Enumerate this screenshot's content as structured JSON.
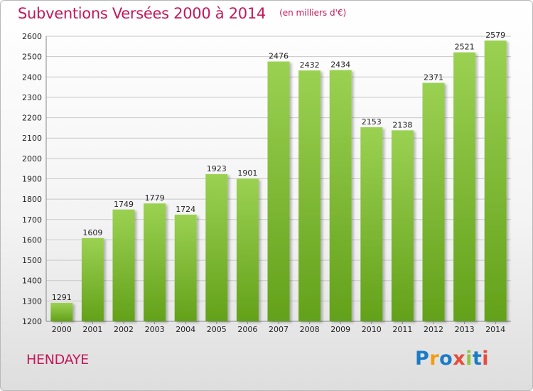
{
  "header": {
    "title": "Subventions Versées 2000 à 2014",
    "subtitle": "(en milliers d'€)"
  },
  "footer": {
    "city": "HENDAYE",
    "logo_text": "Proxiti",
    "logo_colors": [
      "#1a7bc6",
      "#f39c12",
      "#1a7bc6",
      "#e74c3c",
      "#8dc63f",
      "#1a7bc6",
      "#e74c3c"
    ]
  },
  "colors": {
    "bar_light": "#9bd152",
    "bar_dark": "#63a11a",
    "grid": "#c8c8c8",
    "title": "#c2185b"
  },
  "chart_data": {
    "type": "bar",
    "title": "Subventions Versées 2000 à 2014",
    "subtitle": "(en milliers d'€)",
    "categories": [
      "2000",
      "2001",
      "2002",
      "2003",
      "2004",
      "2005",
      "2006",
      "2007",
      "2008",
      "2009",
      "2010",
      "2011",
      "2012",
      "2013",
      "2014"
    ],
    "values": [
      1291,
      1609,
      1749,
      1779,
      1724,
      1923,
      1901,
      2476,
      2432,
      2434,
      2153,
      2138,
      2371,
      2521,
      2579
    ],
    "xlabel": "",
    "ylabel": "",
    "ylim": [
      1200,
      2600
    ],
    "yticks": [
      1200,
      1300,
      1400,
      1500,
      1600,
      1700,
      1800,
      1900,
      2000,
      2100,
      2200,
      2300,
      2400,
      2500,
      2600
    ],
    "grid": true,
    "data_labels": true
  }
}
